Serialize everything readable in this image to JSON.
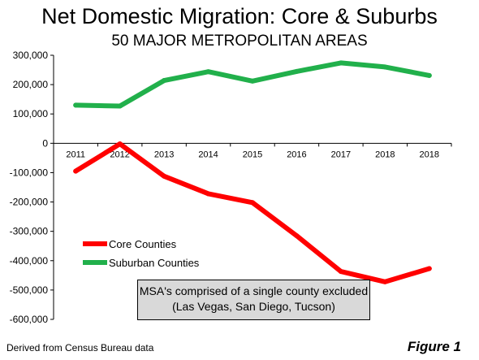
{
  "title": "Net Domestic Migration: Core & Suburbs",
  "subtitle": "50 MAJOR METROPOLITAN AREAS",
  "note": {
    "line1": "MSA's comprised of a single county excluded",
    "line2": "(Las Vegas, San Diego, Tucson)"
  },
  "source": "Derived from Census Bureau data",
  "figure_label": "Figure 1",
  "chart_data": {
    "type": "line",
    "categories": [
      "2011",
      "2012",
      "2013",
      "2014",
      "2015",
      "2016",
      "2017",
      "2018",
      "2018"
    ],
    "y_ticks": [
      "300,000",
      "200,000",
      "100,000",
      "0",
      "-100,000",
      "-200,000",
      "-300,000",
      "-400,000",
      "-500,000",
      "-600,000"
    ],
    "ylim": [
      -600000,
      300000
    ],
    "grid": false,
    "legend_position": "lower-left",
    "series": [
      {
        "name": "Core Counties",
        "color": "#ff0000",
        "values": [
          -95000,
          -2000,
          -112000,
          -172000,
          -202000,
          -315000,
          -437000,
          -472000,
          -427000
        ]
      },
      {
        "name": "Suburban Counties",
        "color": "#21b04b",
        "values": [
          130000,
          127000,
          214000,
          244000,
          212000,
          245000,
          274000,
          260000,
          231000
        ]
      }
    ]
  }
}
